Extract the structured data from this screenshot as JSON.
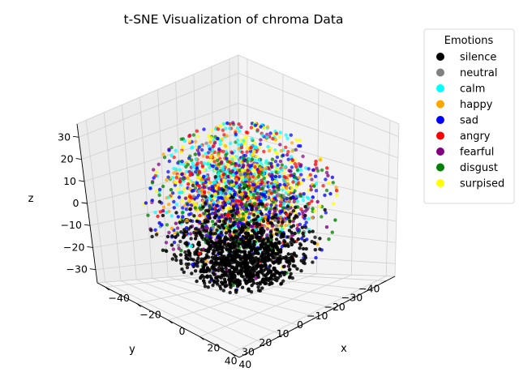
{
  "chart_data": {
    "type": "scatter",
    "projection": "3d",
    "title": "t-SNE Visualization of chroma Data",
    "xlabel": "x",
    "ylabel": "y",
    "zlabel": "z",
    "xlim": [
      -45,
      45
    ],
    "ylim": [
      -45,
      45
    ],
    "zlim": [
      -36,
      36
    ],
    "x_ticks": [
      -40,
      -20,
      0,
      20,
      40
    ],
    "y_ticks": [
      -40,
      -30,
      -20,
      -10,
      0,
      10,
      20,
      30,
      40
    ],
    "z_ticks": [
      -30,
      -20,
      -10,
      0,
      10,
      20,
      30
    ],
    "grid": true,
    "legend": {
      "title": "Emotions",
      "placement": "upper-right-outside",
      "entries": [
        {
          "label": "silence",
          "color": "#000000"
        },
        {
          "label": "neutral",
          "color": "#808080"
        },
        {
          "label": "calm",
          "color": "#00ffff"
        },
        {
          "label": "happy",
          "color": "#ffa500"
        },
        {
          "label": "sad",
          "color": "#0000ff"
        },
        {
          "label": "angry",
          "color": "#ff0000"
        },
        {
          "label": "fearful",
          "color": "#800080"
        },
        {
          "label": "disgust",
          "color": "#008000"
        },
        {
          "label": "surpised",
          "color": "#ffff00"
        }
      ]
    },
    "series": [
      {
        "name": "silence",
        "color": "#000000",
        "count": 1100,
        "center": [
          20,
          20,
          -10
        ],
        "spread": [
          14,
          13,
          9
        ]
      },
      {
        "name": "neutral",
        "color": "#808080",
        "count": 60,
        "center": [
          0,
          0,
          0
        ],
        "spread": [
          16,
          16,
          11
        ]
      },
      {
        "name": "calm",
        "color": "#00ffff",
        "count": 320,
        "center": [
          -12,
          -12,
          6
        ],
        "spread": [
          14,
          14,
          11
        ]
      },
      {
        "name": "happy",
        "color": "#ffa500",
        "count": 200,
        "center": [
          -6,
          -6,
          2
        ],
        "spread": [
          15,
          15,
          12
        ]
      },
      {
        "name": "sad",
        "color": "#0000ff",
        "count": 340,
        "center": [
          -5,
          -5,
          2
        ],
        "spread": [
          16,
          16,
          12
        ]
      },
      {
        "name": "angry",
        "color": "#ff0000",
        "count": 260,
        "center": [
          -10,
          -10,
          4
        ],
        "spread": [
          15,
          15,
          12
        ]
      },
      {
        "name": "fearful",
        "color": "#800080",
        "count": 220,
        "center": [
          -4,
          -4,
          1
        ],
        "spread": [
          16,
          16,
          12
        ]
      },
      {
        "name": "disgust",
        "color": "#008000",
        "count": 240,
        "center": [
          -4,
          -4,
          0
        ],
        "spread": [
          16,
          16,
          12
        ]
      },
      {
        "name": "surpised",
        "color": "#ffff00",
        "count": 300,
        "center": [
          -12,
          -12,
          4
        ],
        "spread": [
          15,
          15,
          12
        ]
      }
    ]
  }
}
